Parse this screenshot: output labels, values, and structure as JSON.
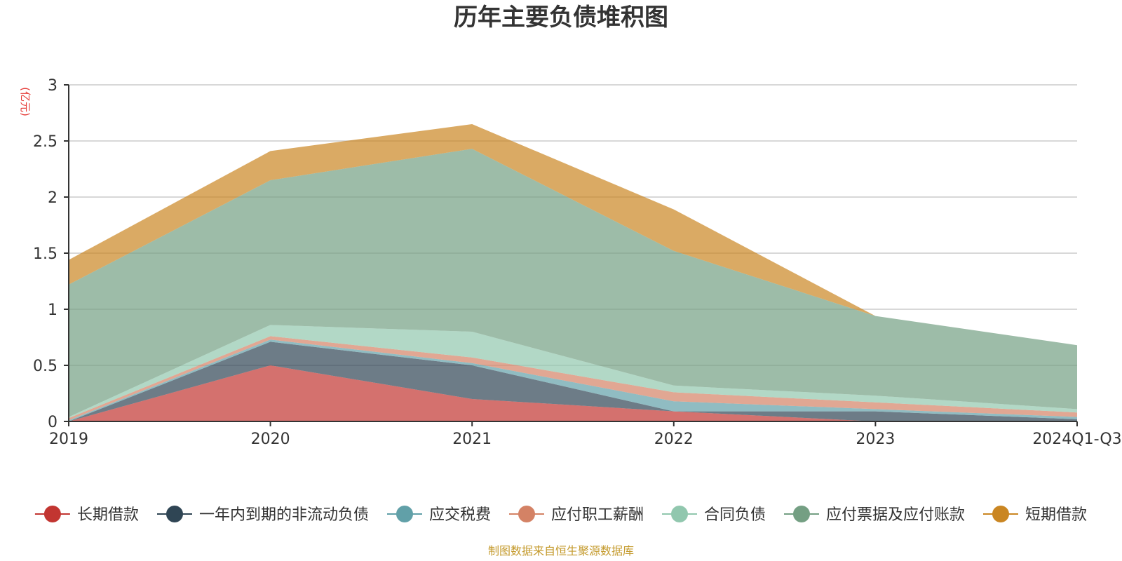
{
  "chart_data": {
    "type": "area",
    "stacked": true,
    "title": "历年主要负债堆积图",
    "unit_label": "(亿元)",
    "x": [
      "2019",
      "2020",
      "2021",
      "2022",
      "2023",
      "2024Q1-Q3"
    ],
    "y_ticks": [
      "0",
      "0.5",
      "1",
      "1.5",
      "2",
      "2.5",
      "3"
    ],
    "ylim": [
      0,
      3
    ],
    "grid": true,
    "legend_position": "bottom",
    "series": [
      {
        "name": "长期借款",
        "color": "#c23531",
        "values": [
          0.0,
          0.5,
          0.2,
          0.09,
          0.0,
          0.0
        ]
      },
      {
        "name": "一年内到期的非流动负债",
        "color": "#2f4554",
        "values": [
          0.0,
          0.21,
          0.3,
          0.0,
          0.09,
          0.02
        ]
      },
      {
        "name": "应交税费",
        "color": "#61a0a8",
        "values": [
          0.01,
          0.02,
          0.02,
          0.09,
          0.02,
          0.02
        ]
      },
      {
        "name": "应付职工薪酬",
        "color": "#d48265",
        "values": [
          0.02,
          0.03,
          0.05,
          0.08,
          0.06,
          0.04
        ]
      },
      {
        "name": "合同负债",
        "color": "#91c7ae",
        "values": [
          0.01,
          0.1,
          0.23,
          0.06,
          0.06,
          0.03
        ]
      },
      {
        "name": "应付票据及应付账款",
        "color": "#749f83",
        "values": [
          1.18,
          1.29,
          1.63,
          1.2,
          0.71,
          0.57
        ]
      },
      {
        "name": "短期借款",
        "color": "#ca8622",
        "values": [
          0.22,
          0.26,
          0.22,
          0.37,
          0.0,
          0.0
        ]
      }
    ]
  },
  "source_note": "制图数据来自恒生聚源数据库"
}
